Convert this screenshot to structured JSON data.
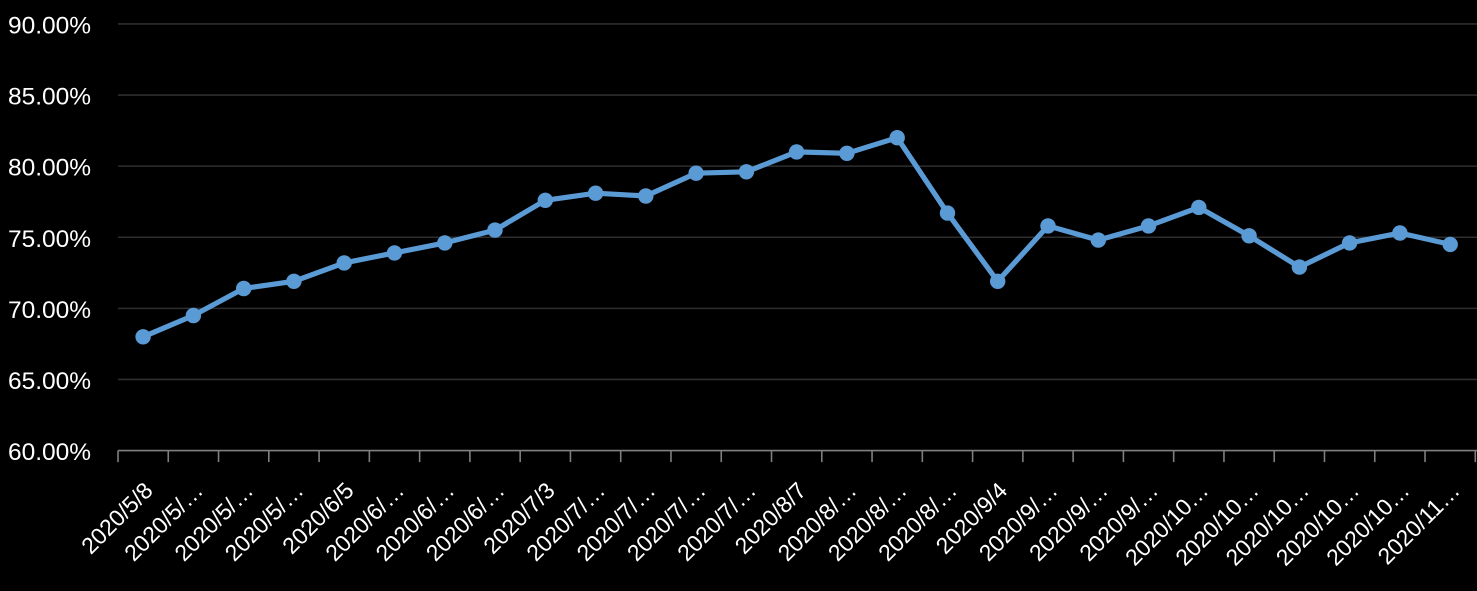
{
  "chart_data": {
    "type": "line",
    "title": "",
    "xlabel": "",
    "ylabel": "",
    "categories": [
      "2020/5/8",
      "2020/5/…",
      "2020/5/…",
      "2020/5/…",
      "2020/6/5",
      "2020/6/…",
      "2020/6/…",
      "2020/6/…",
      "2020/7/3",
      "2020/7/…",
      "2020/7/…",
      "2020/7/…",
      "2020/7/…",
      "2020/8/7",
      "2020/8/…",
      "2020/8/…",
      "2020/8/…",
      "2020/9/4",
      "2020/9/…",
      "2020/9/…",
      "2020/9/…",
      "2020/10…",
      "2020/10…",
      "2020/10…",
      "2020/10…",
      "2020/10…",
      "2020/11…"
    ],
    "values": [
      68.0,
      69.5,
      71.4,
      71.9,
      73.2,
      73.9,
      74.6,
      75.5,
      77.6,
      78.1,
      77.9,
      79.5,
      79.6,
      81.0,
      80.9,
      82.0,
      76.7,
      71.9,
      75.8,
      74.8,
      75.8,
      77.1,
      75.1,
      72.9,
      74.6,
      75.3,
      74.5
    ],
    "value_unit": "%",
    "ylim": [
      60,
      90
    ],
    "ytick_step": 5,
    "ytick_labels_top_to_bottom": [
      "90.00%",
      "85.00%",
      "80.00%",
      "75.00%",
      "70.00%",
      "65.00%",
      "60.00%"
    ],
    "grid": true,
    "legend": false,
    "x_labels_rotation_deg": 45,
    "colors": {
      "background": "#000000",
      "line": "#5B9BD5",
      "marker": "#5B9BD5",
      "gridline": "#2E2E2E",
      "axis": "#7F7F7F",
      "label_text": "#FFFFFF"
    }
  }
}
